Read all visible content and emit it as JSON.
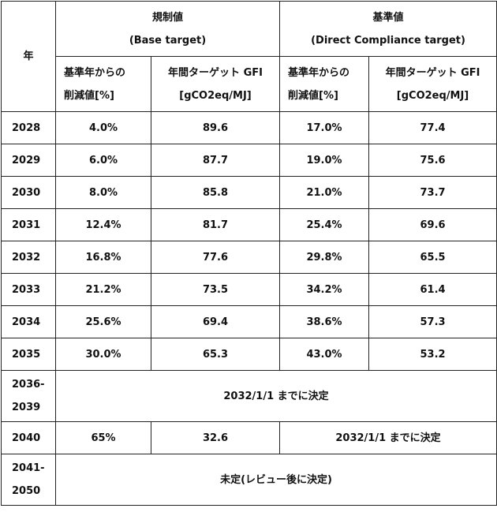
{
  "table": {
    "year_header": "年",
    "group_base": {
      "title": "規制値",
      "subtitle": "(Base target)"
    },
    "group_direct": {
      "title": "基準値",
      "subtitle": "(Direct Compliance target)"
    },
    "col_reduction": {
      "line1": "基準年からの",
      "line2": "削減値[%]"
    },
    "col_gfi": {
      "line1": "年間ターゲット GFI",
      "line2": "[gCO2eq/MJ]"
    },
    "rows": [
      {
        "year": "2028",
        "base_red": "4.0%",
        "base_gfi": "89.6",
        "dc_red": "17.0%",
        "dc_gfi": "77.4"
      },
      {
        "year": "2029",
        "base_red": "6.0%",
        "base_gfi": "87.7",
        "dc_red": "19.0%",
        "dc_gfi": "75.6"
      },
      {
        "year": "2030",
        "base_red": "8.0%",
        "base_gfi": "85.8",
        "dc_red": "21.0%",
        "dc_gfi": "73.7"
      },
      {
        "year": "2031",
        "base_red": "12.4%",
        "base_gfi": "81.7",
        "dc_red": "25.4%",
        "dc_gfi": "69.6"
      },
      {
        "year": "2032",
        "base_red": "16.8%",
        "base_gfi": "77.6",
        "dc_red": "29.8%",
        "dc_gfi": "65.5"
      },
      {
        "year": "2033",
        "base_red": "21.2%",
        "base_gfi": "73.5",
        "dc_red": "34.2%",
        "dc_gfi": "61.4"
      },
      {
        "year": "2034",
        "base_red": "25.6%",
        "base_gfi": "69.4",
        "dc_red": "38.6%",
        "dc_gfi": "57.3"
      },
      {
        "year": "2035",
        "base_red": "30.0%",
        "base_gfi": "65.3",
        "dc_red": "43.0%",
        "dc_gfi": "53.2"
      }
    ],
    "row_2036": {
      "year_line1": "2036-",
      "year_line2": "2039",
      "note": "2032/1/1 までに決定"
    },
    "row_2040": {
      "year": "2040",
      "base_red": "65%",
      "base_gfi": "32.6",
      "dc_note": "2032/1/1 までに決定"
    },
    "row_2041": {
      "year_line1": "2041-",
      "year_line2": "2050",
      "note": "未定(レビュー後に決定)"
    }
  }
}
